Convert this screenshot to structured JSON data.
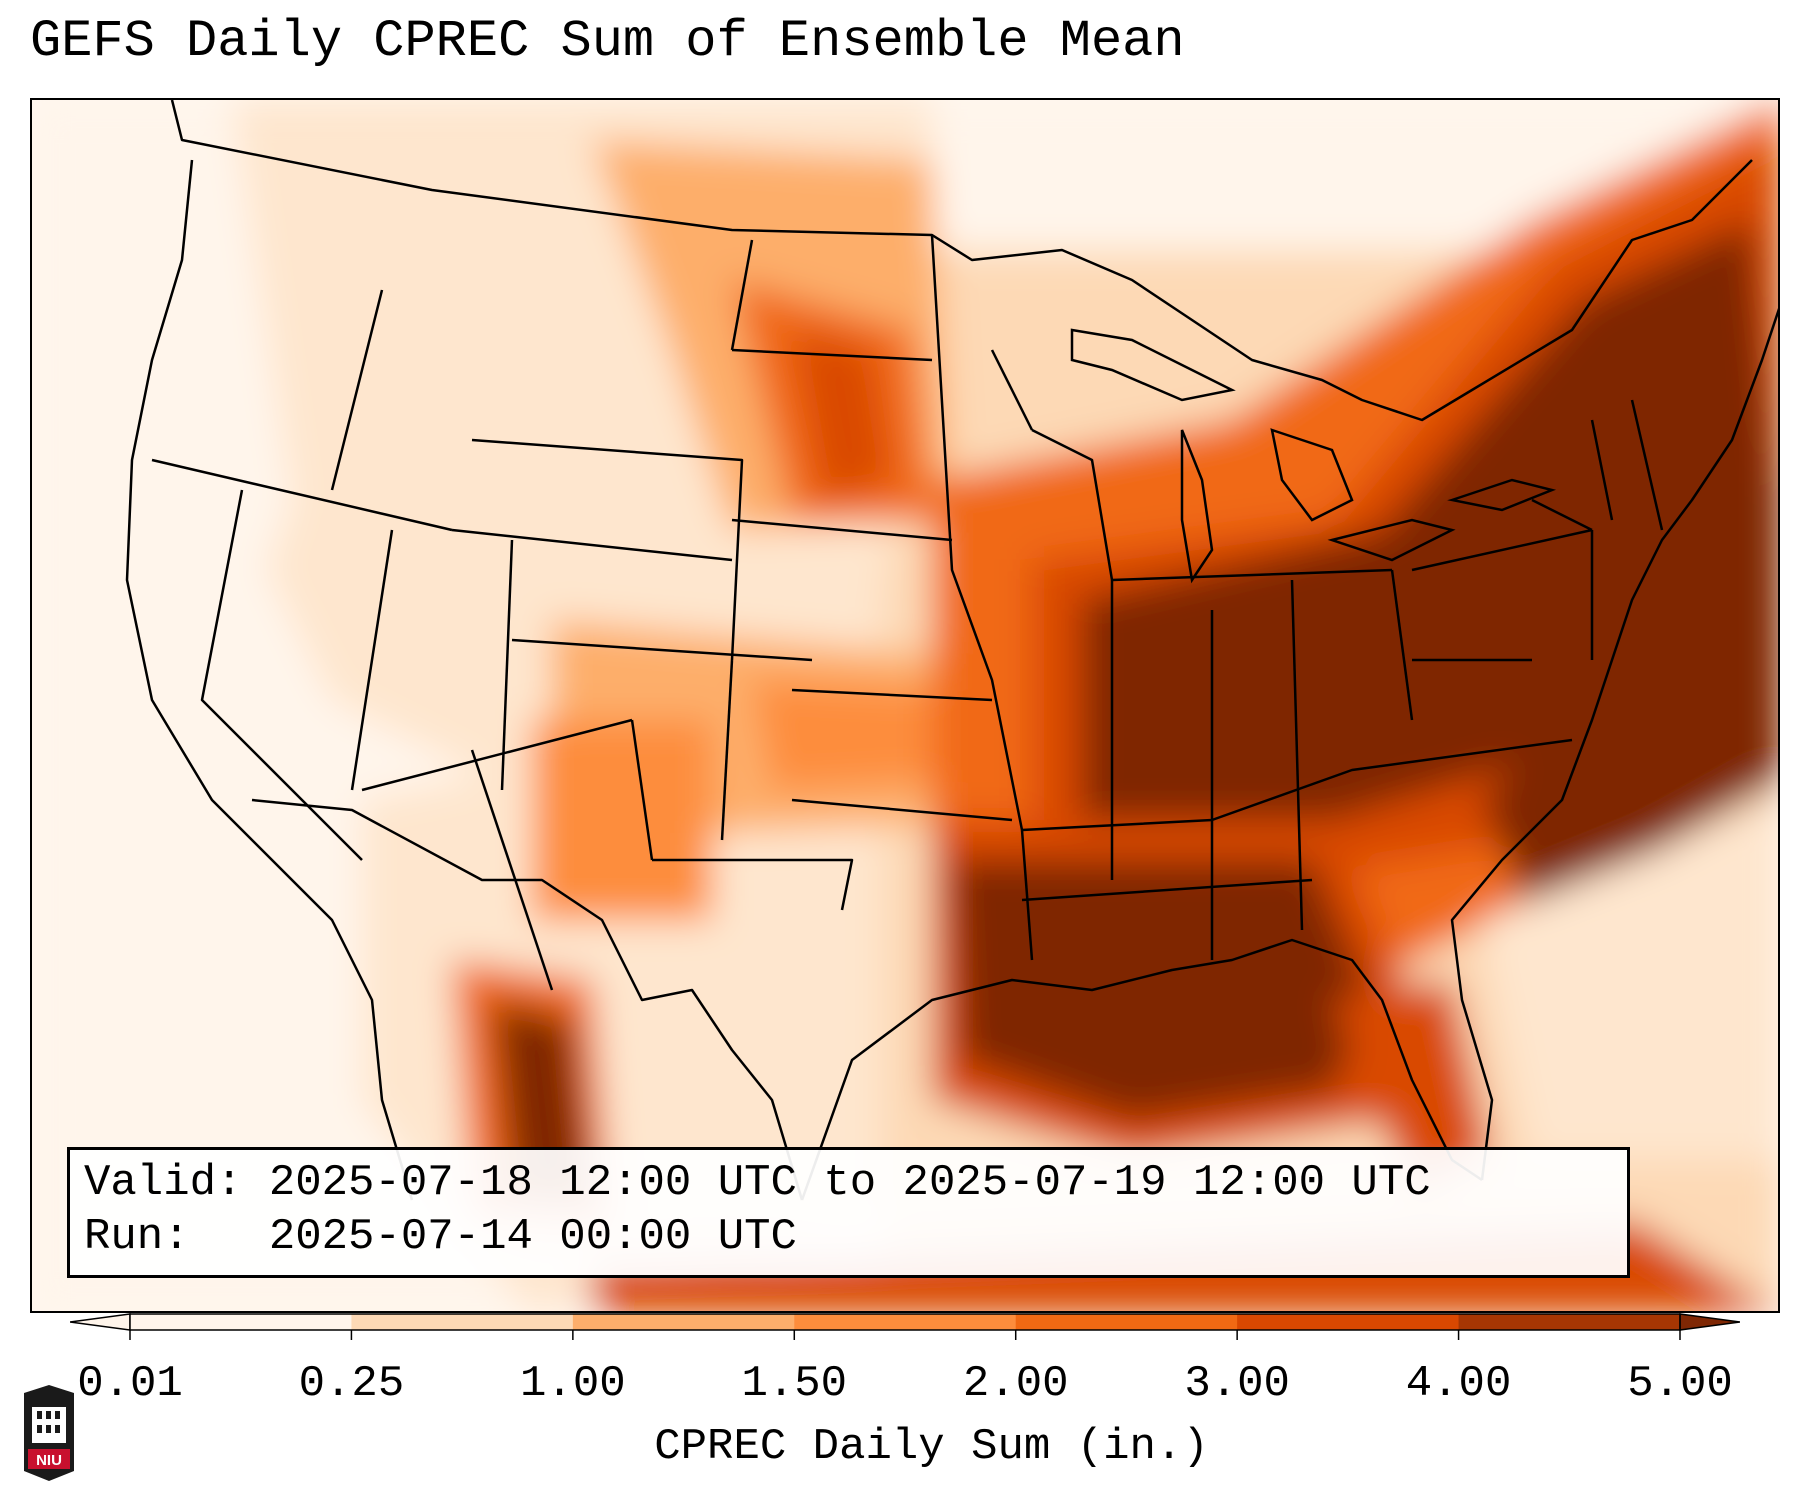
{
  "title": "GEFS Daily CPREC Sum of Ensemble Mean",
  "info": {
    "valid_label": "Valid:",
    "valid_value": "2025-07-18 12:00 UTC to 2025-07-19 12:00 UTC",
    "run_label": "Run:",
    "run_value": "2025-07-14 00:00 UTC"
  },
  "colorbar": {
    "label": "CPREC Daily Sum (in.)",
    "ticks": [
      "0.01",
      "0.25",
      "1.00",
      "1.50",
      "2.00",
      "3.00",
      "4.00",
      "5.00"
    ],
    "colors": [
      "#fff5eb",
      "#fdd9b5",
      "#fdae6b",
      "#fd8d3c",
      "#f16913",
      "#d94801",
      "#a63603",
      "#7f2704"
    ],
    "extend": "both"
  },
  "logo": {
    "text": "NIU",
    "color": "#c8102e"
  },
  "map": {
    "projection": "Lambert conformal, CONUS",
    "features": [
      "state boundaries",
      "coastlines",
      "country borders",
      "great lakes"
    ]
  }
}
